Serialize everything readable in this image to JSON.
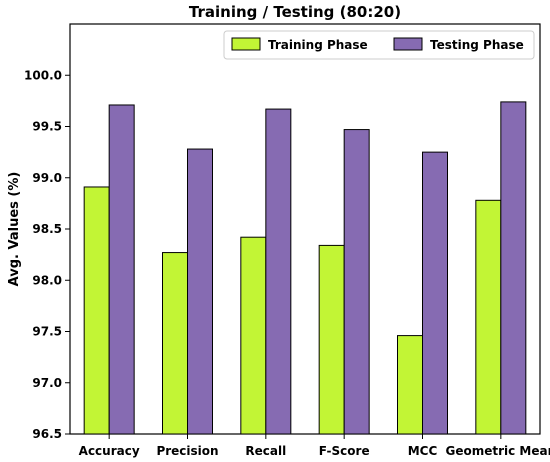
{
  "chart_data": {
    "type": "bar",
    "title": "Training / Testing (80:20)",
    "xlabel": "",
    "ylabel": "Avg. Values (%)",
    "categories": [
      "Accuracy",
      "Precision",
      "Recall",
      "F-Score",
      "MCC",
      "Geometric Mean"
    ],
    "series": [
      {
        "name": "Training Phase",
        "color": "#c2f535",
        "values": [
          98.91,
          98.27,
          98.42,
          98.34,
          97.46,
          98.78
        ]
      },
      {
        "name": "Testing Phase",
        "color": "#866bb2",
        "values": [
          99.71,
          99.28,
          99.67,
          99.47,
          99.25,
          99.74
        ]
      }
    ],
    "ylim": [
      96.5,
      100.5
    ],
    "yticks": [
      "96.5",
      "97.0",
      "97.5",
      "98.0",
      "98.5",
      "99.0",
      "99.5",
      "100.0"
    ],
    "grid": false,
    "legend_position": "top-right"
  }
}
